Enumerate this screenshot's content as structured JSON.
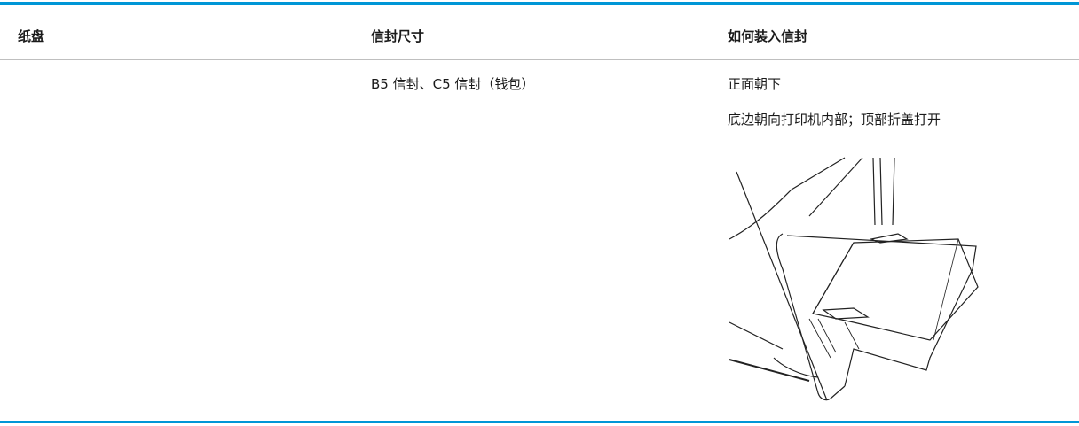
{
  "table": {
    "headers": [
      "纸盘",
      "信封尺寸",
      "如何装入信封"
    ],
    "rows": [
      {
        "size": "B5 信封、C5 信封（钱包）",
        "instructions": [
          "正面朝下",
          "底边朝向打印机内部；顶部折盖打开"
        ]
      }
    ]
  }
}
